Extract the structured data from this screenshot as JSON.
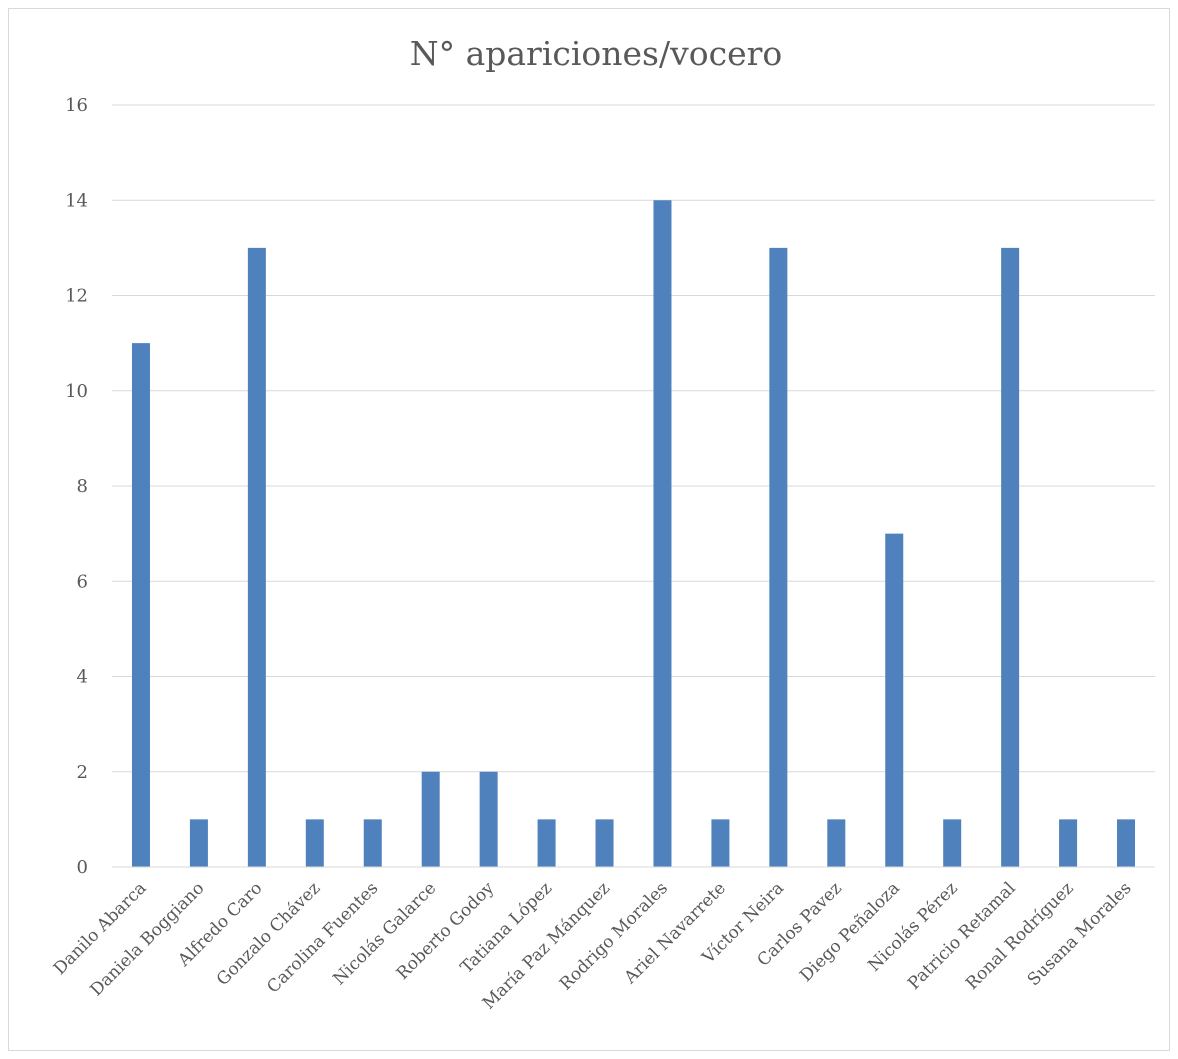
{
  "chart_data": {
    "type": "bar",
    "title": "N° apariciones/vocero",
    "xlabel": "",
    "ylabel": "",
    "ylim": [
      0,
      16
    ],
    "yticks": [
      0,
      2,
      4,
      6,
      8,
      10,
      12,
      14,
      16
    ],
    "grid": true,
    "legend": "none",
    "bar_color": "#4f81bd",
    "categories": [
      "Danilo Abarca",
      "Daniela Boggiano",
      "Alfredo Caro",
      "Gonzalo Chávez",
      "Carolina Fuentes",
      "Nicolás Galarce",
      "Roberto Godoy",
      "Tatiana López",
      "María Paz Mánquez",
      "Rodrigo Morales",
      "Ariel Navarrete",
      "Víctor Neira",
      "Carlos Pavez",
      "Diego Peñaloza",
      "Nicolás Pérez",
      "Patricio Retamal",
      "Ronal Rodríguez",
      "Susana Morales"
    ],
    "values": [
      11,
      1,
      13,
      1,
      1,
      2,
      2,
      1,
      1,
      14,
      1,
      13,
      1,
      7,
      1,
      13,
      1,
      1
    ]
  }
}
